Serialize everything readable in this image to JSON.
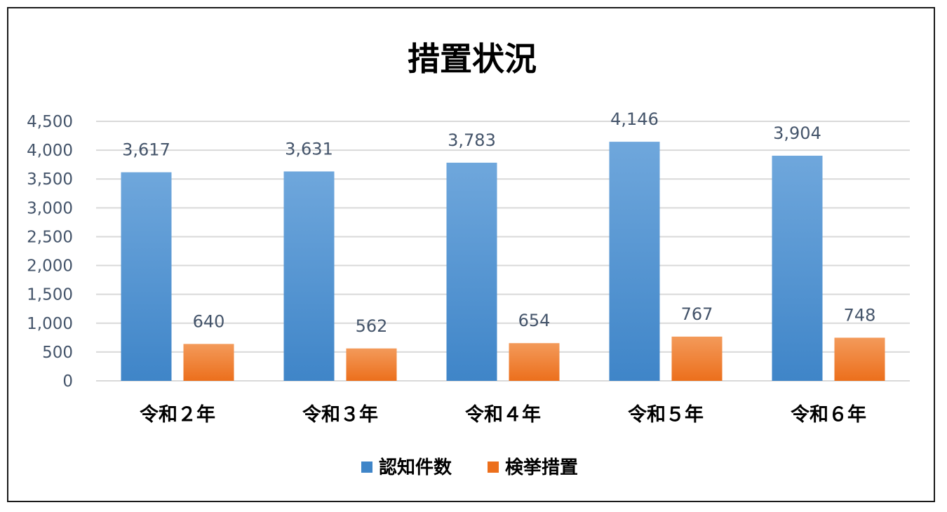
{
  "chart_data": {
    "type": "bar",
    "title": "措置状況",
    "categories": [
      "令和２年",
      "令和３年",
      "令和４年",
      "令和５年",
      "令和６年"
    ],
    "series": [
      {
        "name": "認知件数",
        "values": [
          3617,
          3631,
          3783,
          4146,
          3904
        ],
        "labels": [
          "3,617",
          "3,631",
          "3,783",
          "4,146",
          "3,904"
        ]
      },
      {
        "name": "検挙措置",
        "values": [
          640,
          562,
          654,
          767,
          748
        ],
        "labels": [
          "640",
          "562",
          "654",
          "767",
          "748"
        ]
      }
    ],
    "yticks": [
      "0",
      "500",
      "1,000",
      "1,500",
      "2,000",
      "2,500",
      "3,000",
      "3,500",
      "4,000",
      "4,500"
    ],
    "ylim": [
      0,
      4500
    ],
    "grid": true,
    "legend": "bottom",
    "colors": {
      "series1_top": "#6fa7dc",
      "series1_bottom": "#3f85c8",
      "series2_top": "#f39a5a",
      "series2_bottom": "#ec6f1c"
    }
  }
}
